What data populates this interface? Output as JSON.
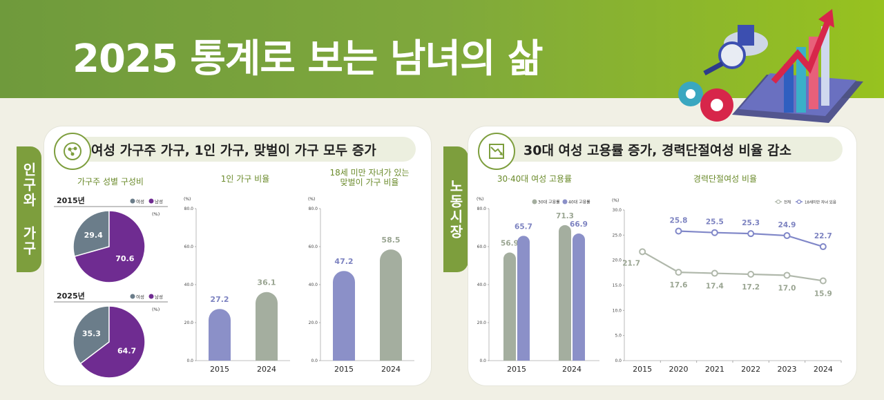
{
  "page": {
    "title": "2025 통계로 보는 남녀의 삶"
  },
  "sections": [
    {
      "side_label": "인구와 가구",
      "header": "여성 가구주 가구, 1인 가구, 맞벌이 가구 모두 증가"
    },
    {
      "side_label": "노동시장",
      "header": "30대 여성 고용률 증가, 경력단절여성 비율 감소"
    }
  ],
  "colors": {
    "female": "#6b7d8a",
    "male": "#6f2c91",
    "bar_blue": "#8b90c8",
    "bar_gray": "#a4ae9f",
    "line_gray": "#b0b8ab",
    "line_blue": "#8087c8",
    "accent_green": "#7d9e3d"
  },
  "chart_data": [
    {
      "type": "pie",
      "title": "가구주 성별 구성비",
      "subtitle": "2015년",
      "unit": "(%)",
      "legend": [
        "여성",
        "남성"
      ],
      "slices": [
        {
          "label": "여성",
          "value": 29.4
        },
        {
          "label": "남성",
          "value": 70.6
        }
      ]
    },
    {
      "type": "pie",
      "subtitle": "2025년",
      "unit": "(%)",
      "legend": [
        "여성",
        "남성"
      ],
      "slices": [
        {
          "label": "여성",
          "value": 35.3
        },
        {
          "label": "남성",
          "value": 64.7
        }
      ]
    },
    {
      "type": "bar",
      "title": "1인 가구 비율",
      "unit": "(%)",
      "categories": [
        "2015",
        "2024"
      ],
      "values": [
        27.2,
        36.1
      ],
      "ylim": [
        0,
        80
      ],
      "yticks": [
        "0.0",
        "20.0",
        "40.0",
        "60.0",
        "80.0"
      ]
    },
    {
      "type": "bar",
      "title": "18세 미만 자녀가 있는 맞벌이 가구 비율",
      "title_lines": [
        "18세 미만 자녀가 있는",
        "맞벌이 가구 비율"
      ],
      "unit": "(%)",
      "categories": [
        "2015",
        "2024"
      ],
      "values": [
        47.2,
        58.5
      ],
      "ylim": [
        0,
        80
      ],
      "yticks": [
        "0.0",
        "20.0",
        "40.0",
        "60.0",
        "80.0"
      ]
    },
    {
      "type": "bar",
      "title": "30·40대 여성 고용률",
      "unit": "(%)",
      "categories": [
        "2015",
        "2024"
      ],
      "series": [
        {
          "name": "30대 고용률",
          "values": [
            56.9,
            71.3
          ]
        },
        {
          "name": "40대 고용률",
          "values": [
            65.7,
            66.9
          ]
        }
      ],
      "ylim": [
        0,
        80
      ],
      "yticks": [
        "0.0",
        "20.0",
        "40.0",
        "60.0",
        "80.0"
      ]
    },
    {
      "type": "line",
      "title": "경력단절여성 비율",
      "unit": "(%)",
      "x": [
        "2015",
        "2020",
        "2021",
        "2022",
        "2023",
        "2024"
      ],
      "series": [
        {
          "name": "전체",
          "values": [
            21.7,
            17.6,
            17.4,
            17.2,
            17.0,
            15.9
          ]
        },
        {
          "name": "18세미만 자녀 있음",
          "values": [
            null,
            25.8,
            25.5,
            25.3,
            24.9,
            22.7
          ]
        }
      ],
      "ylim": [
        0,
        30
      ],
      "yticks": [
        "0.0",
        "5.0",
        "10.0",
        "15.0",
        "20.0",
        "25.0",
        "30.0"
      ]
    }
  ]
}
